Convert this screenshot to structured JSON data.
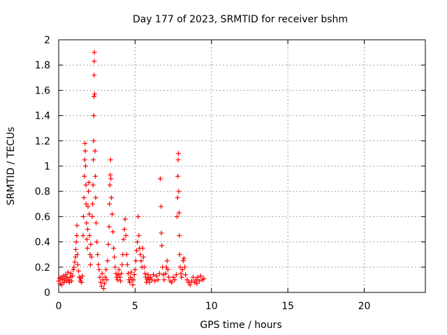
{
  "chart_data": {
    "type": "scatter",
    "title": "Day 177 of 2023, SRMTID for receiver bshm",
    "xlabel": "GPS time / hours",
    "ylabel": "SRMTID / TECUs",
    "xlim": [
      0,
      24
    ],
    "ylim": [
      0,
      2
    ],
    "xticks": [
      0,
      5,
      10,
      15,
      20
    ],
    "yticks": [
      0,
      0.2,
      0.4,
      0.6,
      0.8,
      1,
      1.2,
      1.4,
      1.6,
      1.8,
      2
    ],
    "xtick_labels": [
      "0",
      "5",
      "10",
      "15",
      "20"
    ],
    "ytick_labels": [
      "0",
      "0.2",
      "0.4",
      "0.6",
      "0.8",
      "1",
      "1.2",
      "1.4",
      "1.6",
      "1.8",
      "2"
    ],
    "grid": true,
    "marker": "+",
    "color": "#ff0000",
    "series": [
      {
        "name": "SRMTID",
        "points": [
          [
            0.0,
            0.09
          ],
          [
            0.05,
            0.11
          ],
          [
            0.1,
            0.07
          ],
          [
            0.15,
            0.12
          ],
          [
            0.2,
            0.06
          ],
          [
            0.25,
            0.1
          ],
          [
            0.3,
            0.13
          ],
          [
            0.35,
            0.08
          ],
          [
            0.4,
            0.11
          ],
          [
            0.45,
            0.14
          ],
          [
            0.5,
            0.09
          ],
          [
            0.55,
            0.12
          ],
          [
            0.6,
            0.16
          ],
          [
            0.65,
            0.1
          ],
          [
            0.7,
            0.08
          ],
          [
            0.75,
            0.12
          ],
          [
            0.8,
            0.15
          ],
          [
            0.85,
            0.09
          ],
          [
            0.9,
            0.13
          ],
          [
            0.95,
            0.18
          ],
          [
            1.0,
            0.2
          ],
          [
            1.05,
            0.24
          ],
          [
            1.1,
            0.28
          ],
          [
            1.12,
            0.34
          ],
          [
            1.15,
            0.4
          ],
          [
            1.18,
            0.45
          ],
          [
            1.2,
            0.53
          ],
          [
            1.22,
            0.3
          ],
          [
            1.25,
            0.22
          ],
          [
            1.3,
            0.17
          ],
          [
            1.35,
            0.12
          ],
          [
            1.4,
            0.09
          ],
          [
            1.45,
            0.11
          ],
          [
            1.5,
            0.08
          ],
          [
            1.55,
            0.13
          ],
          [
            1.6,
            0.45
          ],
          [
            1.62,
            0.6
          ],
          [
            1.65,
            0.75
          ],
          [
            1.68,
            0.92
          ],
          [
            1.7,
            1.05
          ],
          [
            1.72,
            1.18
          ],
          [
            1.74,
            1.12
          ],
          [
            1.76,
            1.0
          ],
          [
            1.78,
            0.85
          ],
          [
            1.8,
            0.7
          ],
          [
            1.82,
            0.55
          ],
          [
            1.85,
            0.42
          ],
          [
            1.88,
            0.35
          ],
          [
            1.9,
            0.5
          ],
          [
            1.92,
            0.68
          ],
          [
            1.95,
            0.8
          ],
          [
            1.98,
            0.87
          ],
          [
            2.0,
            0.62
          ],
          [
            2.02,
            0.45
          ],
          [
            2.05,
            0.3
          ],
          [
            2.08,
            0.22
          ],
          [
            2.1,
            0.38
          ],
          [
            2.15,
            0.28
          ],
          [
            2.2,
            0.6
          ],
          [
            2.22,
            0.7
          ],
          [
            2.25,
            0.85
          ],
          [
            2.27,
            1.05
          ],
          [
            2.29,
            1.2
          ],
          [
            2.3,
            1.4
          ],
          [
            2.31,
            1.55
          ],
          [
            2.32,
            1.72
          ],
          [
            2.33,
            1.83
          ],
          [
            2.34,
            1.9
          ],
          [
            2.36,
            1.57
          ],
          [
            2.38,
            1.12
          ],
          [
            2.4,
            0.92
          ],
          [
            2.42,
            0.75
          ],
          [
            2.45,
            0.55
          ],
          [
            2.5,
            0.4
          ],
          [
            2.55,
            0.3
          ],
          [
            2.6,
            0.22
          ],
          [
            2.65,
            0.18
          ],
          [
            2.7,
            0.12
          ],
          [
            2.75,
            0.08
          ],
          [
            2.8,
            0.05
          ],
          [
            2.85,
            0.15
          ],
          [
            2.9,
            0.1
          ],
          [
            2.95,
            0.03
          ],
          [
            3.0,
            0.07
          ],
          [
            3.05,
            0.12
          ],
          [
            3.1,
            0.18
          ],
          [
            3.15,
            0.1
          ],
          [
            3.2,
            0.25
          ],
          [
            3.25,
            0.38
          ],
          [
            3.3,
            0.52
          ],
          [
            3.32,
            0.7
          ],
          [
            3.35,
            0.85
          ],
          [
            3.38,
            0.93
          ],
          [
            3.4,
            1.05
          ],
          [
            3.42,
            0.9
          ],
          [
            3.45,
            0.75
          ],
          [
            3.5,
            0.62
          ],
          [
            3.55,
            0.48
          ],
          [
            3.6,
            0.35
          ],
          [
            3.65,
            0.28
          ],
          [
            3.7,
            0.2
          ],
          [
            3.75,
            0.15
          ],
          [
            3.8,
            0.12
          ],
          [
            3.85,
            0.1
          ],
          [
            3.9,
            0.14
          ],
          [
            3.95,
            0.18
          ],
          [
            4.0,
            0.12
          ],
          [
            4.05,
            0.09
          ],
          [
            4.1,
            0.15
          ],
          [
            4.15,
            0.22
          ],
          [
            4.2,
            0.3
          ],
          [
            4.25,
            0.42
          ],
          [
            4.3,
            0.5
          ],
          [
            4.35,
            0.58
          ],
          [
            4.4,
            0.45
          ],
          [
            4.45,
            0.3
          ],
          [
            4.5,
            0.22
          ],
          [
            4.55,
            0.15
          ],
          [
            4.6,
            0.1
          ],
          [
            4.65,
            0.08
          ],
          [
            4.7,
            0.12
          ],
          [
            4.75,
            0.16
          ],
          [
            4.8,
            0.1
          ],
          [
            4.85,
            0.06
          ],
          [
            4.9,
            0.1
          ],
          [
            4.95,
            0.14
          ],
          [
            5.0,
            0.18
          ],
          [
            5.05,
            0.25
          ],
          [
            5.1,
            0.33
          ],
          [
            5.15,
            0.4
          ],
          [
            5.2,
            0.6
          ],
          [
            5.25,
            0.45
          ],
          [
            5.3,
            0.35
          ],
          [
            5.35,
            0.3
          ],
          [
            5.4,
            0.25
          ],
          [
            5.45,
            0.2
          ],
          [
            5.5,
            0.35
          ],
          [
            5.55,
            0.28
          ],
          [
            5.6,
            0.2
          ],
          [
            5.65,
            0.15
          ],
          [
            5.7,
            0.12
          ],
          [
            5.75,
            0.08
          ],
          [
            5.8,
            0.1
          ],
          [
            5.85,
            0.14
          ],
          [
            5.9,
            0.11
          ],
          [
            5.95,
            0.08
          ],
          [
            6.0,
            0.12
          ],
          [
            6.1,
            0.1
          ],
          [
            6.2,
            0.14
          ],
          [
            6.3,
            0.09
          ],
          [
            6.4,
            0.13
          ],
          [
            6.5,
            0.1
          ],
          [
            6.6,
            0.15
          ],
          [
            6.65,
            0.9
          ],
          [
            6.7,
            0.68
          ],
          [
            6.72,
            0.47
          ],
          [
            6.75,
            0.37
          ],
          [
            6.8,
            0.2
          ],
          [
            6.85,
            0.14
          ],
          [
            6.9,
            0.1
          ],
          [
            7.0,
            0.15
          ],
          [
            7.05,
            0.2
          ],
          [
            7.1,
            0.25
          ],
          [
            7.15,
            0.18
          ],
          [
            7.2,
            0.12
          ],
          [
            7.3,
            0.09
          ],
          [
            7.4,
            0.08
          ],
          [
            7.5,
            0.12
          ],
          [
            7.6,
            0.1
          ],
          [
            7.7,
            0.14
          ],
          [
            7.75,
            0.6
          ],
          [
            7.78,
            0.75
          ],
          [
            7.8,
            0.92
          ],
          [
            7.82,
            1.05
          ],
          [
            7.84,
            1.1
          ],
          [
            7.86,
            0.8
          ],
          [
            7.88,
            0.63
          ],
          [
            7.9,
            0.45
          ],
          [
            7.92,
            0.3
          ],
          [
            7.95,
            0.2
          ],
          [
            8.0,
            0.15
          ],
          [
            8.05,
            0.12
          ],
          [
            8.1,
            0.18
          ],
          [
            8.15,
            0.25
          ],
          [
            8.2,
            0.27
          ],
          [
            8.25,
            0.2
          ],
          [
            8.3,
            0.14
          ],
          [
            8.4,
            0.1
          ],
          [
            8.5,
            0.08
          ],
          [
            8.6,
            0.06
          ],
          [
            8.7,
            0.09
          ],
          [
            8.8,
            0.12
          ],
          [
            8.9,
            0.08
          ],
          [
            9.0,
            0.1
          ],
          [
            9.05,
            0.07
          ],
          [
            9.1,
            0.12
          ],
          [
            9.2,
            0.09
          ],
          [
            9.3,
            0.13
          ],
          [
            9.4,
            0.1
          ],
          [
            9.5,
            0.11
          ]
        ]
      }
    ]
  }
}
